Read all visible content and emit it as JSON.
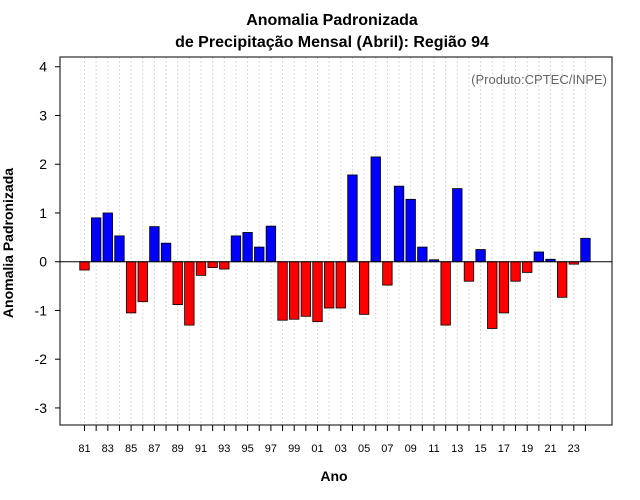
{
  "chart_data": {
    "type": "bar",
    "title_line1": "Anomalia Padronizada",
    "title_line2": "de Precipitação Mensal (Abril): Região 94",
    "xlabel": "Ano",
    "ylabel": "Anomalia Padronizada",
    "credit": "(Produto:CPTEC/INPE)",
    "ylim": [
      -3.35,
      4.2
    ],
    "yticks": [
      -3,
      -2,
      -1,
      0,
      1,
      2,
      3,
      4
    ],
    "categories": [
      "81",
      "82",
      "83",
      "84",
      "85",
      "86",
      "87",
      "88",
      "89",
      "90",
      "91",
      "92",
      "93",
      "94",
      "95",
      "96",
      "97",
      "98",
      "99",
      "00",
      "01",
      "02",
      "03",
      "04",
      "05",
      "06",
      "07",
      "08",
      "09",
      "10",
      "11",
      "12",
      "13",
      "14",
      "15",
      "16",
      "17",
      "18",
      "19",
      "20",
      "21",
      "22",
      "23",
      "24"
    ],
    "xtick_labels": [
      "81",
      "83",
      "85",
      "87",
      "89",
      "91",
      "93",
      "95",
      "97",
      "99",
      "01",
      "03",
      "05",
      "07",
      "09",
      "11",
      "13",
      "15",
      "17",
      "19",
      "21",
      "23"
    ],
    "values": [
      -0.17,
      0.9,
      1.0,
      0.53,
      -1.05,
      -0.82,
      0.72,
      0.38,
      -0.88,
      -1.3,
      -0.28,
      -0.12,
      -0.15,
      0.53,
      0.6,
      0.3,
      0.73,
      -1.2,
      -1.18,
      -1.12,
      -1.23,
      -0.95,
      -0.95,
      1.78,
      -1.08,
      2.15,
      -0.48,
      1.55,
      1.28,
      0.3,
      0.04,
      -1.3,
      1.5,
      -0.4,
      0.25,
      -1.37,
      -1.05,
      -0.4,
      -0.22,
      0.2,
      0.05,
      -0.73,
      -0.05,
      0.48
    ],
    "positive_color": "#0000ff",
    "negative_color": "#ff0000",
    "grid": true
  }
}
